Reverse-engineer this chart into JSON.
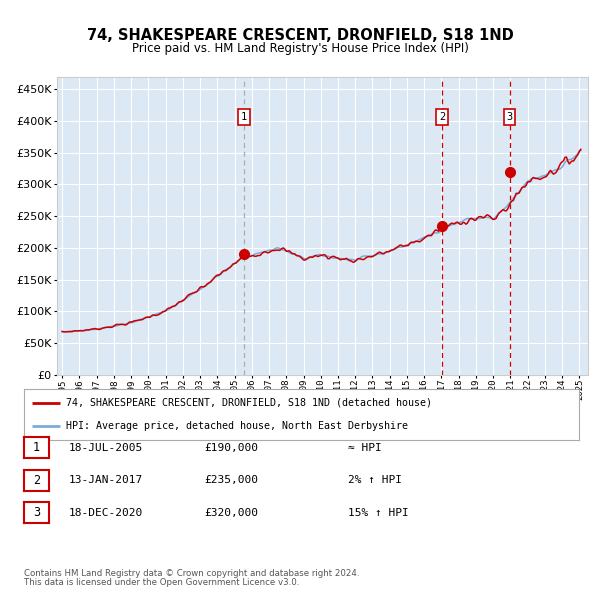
{
  "title": "74, SHAKESPEARE CRESCENT, DRONFIELD, S18 1ND",
  "subtitle": "Price paid vs. HM Land Registry's House Price Index (HPI)",
  "bg_color": "#dce9f5",
  "grid_color": "#ffffff",
  "hpi_color": "#7aabdb",
  "price_color": "#cc0000",
  "sale_color": "#cc0000",
  "x_start_year": 1995,
  "x_end_year": 2025,
  "ylim": [
    0,
    470000
  ],
  "yticks": [
    0,
    50000,
    100000,
    150000,
    200000,
    250000,
    300000,
    350000,
    400000,
    450000
  ],
  "sales": [
    {
      "date_num": 2005.54,
      "price": 190000,
      "label": "1",
      "vline_color": "#aaaaaa",
      "vline_dash": [
        4,
        3
      ]
    },
    {
      "date_num": 2017.04,
      "price": 235000,
      "label": "2",
      "vline_color": "#cc0000",
      "vline_dash": [
        4,
        3
      ]
    },
    {
      "date_num": 2020.96,
      "price": 320000,
      "label": "3",
      "vline_color": "#cc0000",
      "vline_dash": [
        4,
        3
      ]
    }
  ],
  "legend_line1": "74, SHAKESPEARE CRESCENT, DRONFIELD, S18 1ND (detached house)",
  "legend_line2": "HPI: Average price, detached house, North East Derbyshire",
  "table_rows": [
    {
      "num": "1",
      "date": "18-JUL-2005",
      "price": "£190,000",
      "change": "≈ HPI"
    },
    {
      "num": "2",
      "date": "13-JAN-2017",
      "price": "£235,000",
      "change": "2% ↑ HPI"
    },
    {
      "num": "3",
      "date": "18-DEC-2020",
      "price": "£320,000",
      "change": "15% ↑ HPI"
    }
  ],
  "footnote1": "Contains HM Land Registry data © Crown copyright and database right 2024.",
  "footnote2": "This data is licensed under the Open Government Licence v3.0.",
  "anchors_t": [
    1995.0,
    1997.0,
    1999.0,
    2001.0,
    2003.0,
    2005.5,
    2007.5,
    2009.0,
    2010.0,
    2012.0,
    2014.0,
    2016.0,
    2017.0,
    2018.5,
    2019.5,
    2020.0,
    2021.0,
    2022.0,
    2023.0,
    2024.0,
    2025.0
  ],
  "anchors_v": [
    67000,
    72000,
    82000,
    100000,
    135000,
    185000,
    200000,
    183000,
    188000,
    180000,
    195000,
    215000,
    230000,
    245000,
    248000,
    245000,
    270000,
    305000,
    315000,
    330000,
    350000
  ]
}
